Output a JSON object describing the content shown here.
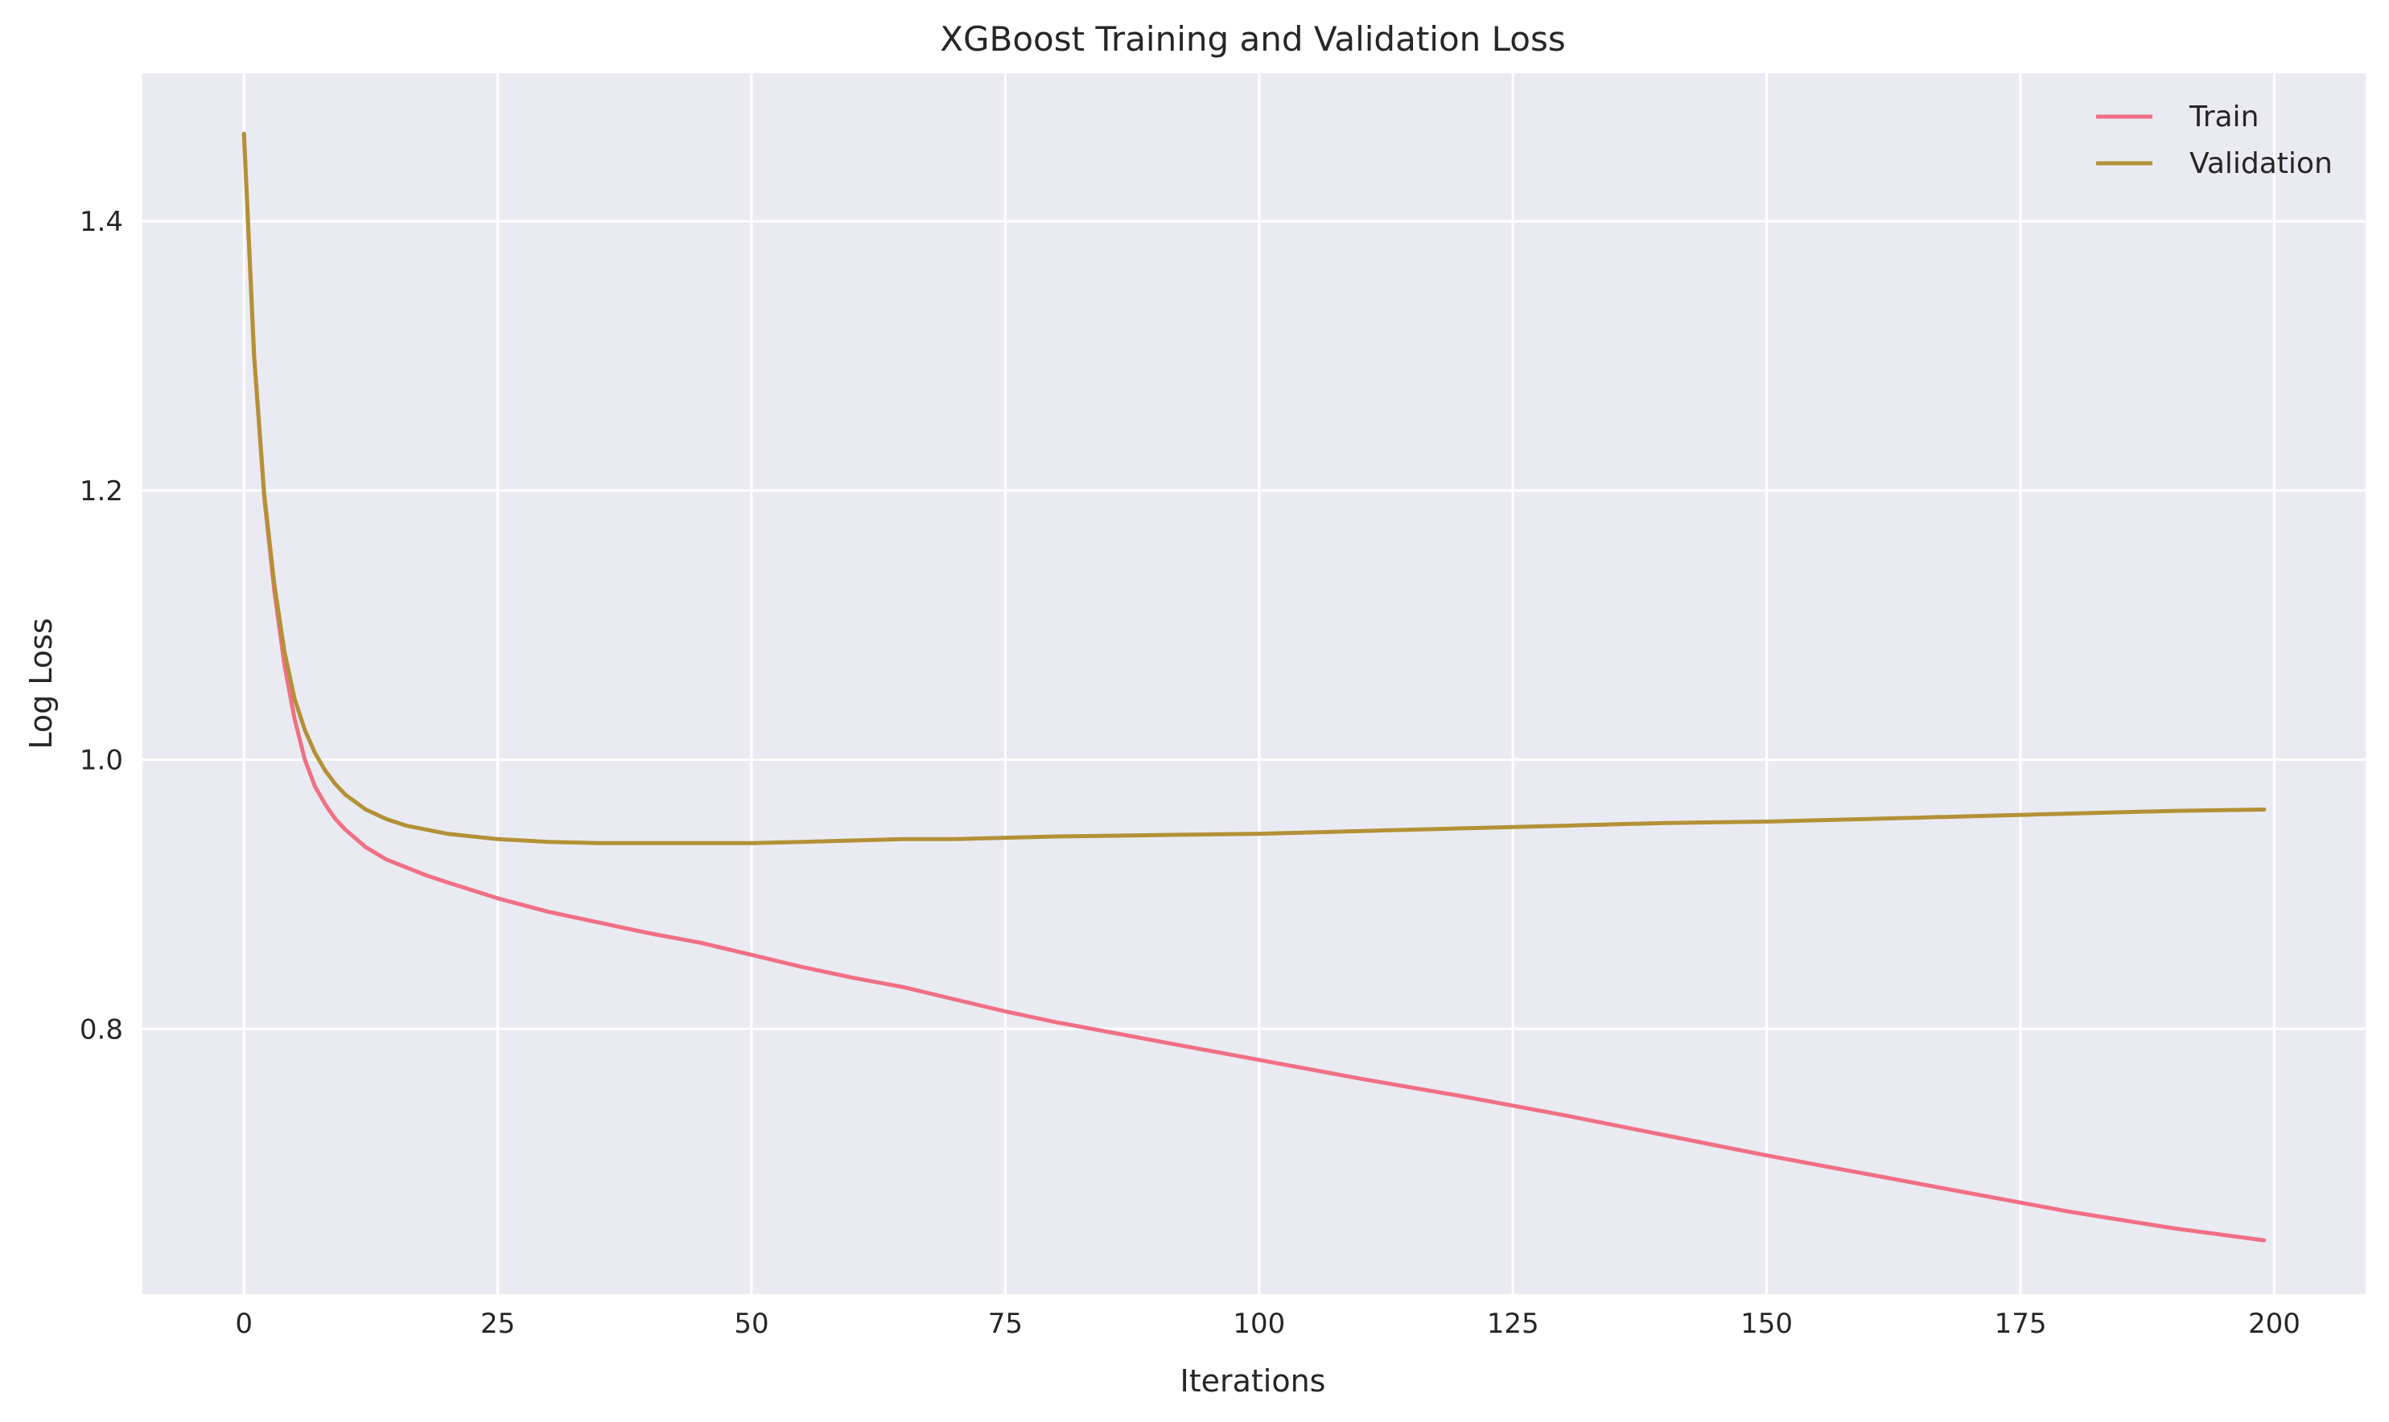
{
  "chart_data": {
    "type": "line",
    "title": "XGBoost Training and Validation Loss",
    "xlabel": "Iterations",
    "ylabel": "Log Loss",
    "xlim": [
      -10,
      209
    ],
    "ylim": [
      0.603,
      1.51
    ],
    "xticks": [
      0,
      25,
      50,
      75,
      100,
      125,
      150,
      175,
      200
    ],
    "yticks": [
      0.8,
      1.0,
      1.2,
      1.4
    ],
    "ytick_labels": [
      "0.8",
      "1.0",
      "1.2",
      "1.4"
    ],
    "grid": true,
    "legend_position": "top-right",
    "series": [
      {
        "name": "Train",
        "color": "#f07084",
        "x": [
          0,
          1,
          2,
          3,
          4,
          5,
          6,
          7,
          8,
          9,
          10,
          12,
          14,
          16,
          18,
          20,
          25,
          30,
          35,
          40,
          45,
          50,
          55,
          60,
          65,
          70,
          75,
          80,
          90,
          100,
          110,
          120,
          130,
          140,
          150,
          160,
          170,
          180,
          190,
          199
        ],
        "y": [
          1.465,
          1.3,
          1.195,
          1.125,
          1.07,
          1.03,
          1.0,
          0.98,
          0.967,
          0.956,
          0.948,
          0.935,
          0.926,
          0.92,
          0.914,
          0.909,
          0.897,
          0.887,
          0.879,
          0.871,
          0.864,
          0.855,
          0.846,
          0.838,
          0.831,
          0.822,
          0.813,
          0.805,
          0.791,
          0.777,
          0.763,
          0.75,
          0.736,
          0.721,
          0.706,
          0.692,
          0.678,
          0.664,
          0.652,
          0.643
        ]
      },
      {
        "name": "Validation",
        "color": "#b39137",
        "x": [
          0,
          1,
          2,
          3,
          4,
          5,
          6,
          7,
          8,
          9,
          10,
          12,
          14,
          16,
          18,
          20,
          25,
          30,
          35,
          40,
          45,
          50,
          55,
          60,
          65,
          70,
          75,
          80,
          90,
          100,
          110,
          120,
          130,
          140,
          150,
          160,
          170,
          180,
          190,
          199
        ],
        "y": [
          1.465,
          1.3,
          1.197,
          1.13,
          1.08,
          1.045,
          1.022,
          1.005,
          0.992,
          0.982,
          0.974,
          0.963,
          0.956,
          0.951,
          0.948,
          0.945,
          0.941,
          0.939,
          0.938,
          0.938,
          0.938,
          0.938,
          0.939,
          0.94,
          0.941,
          0.941,
          0.942,
          0.943,
          0.944,
          0.945,
          0.947,
          0.949,
          0.951,
          0.953,
          0.954,
          0.956,
          0.958,
          0.96,
          0.962,
          0.963
        ]
      }
    ]
  }
}
